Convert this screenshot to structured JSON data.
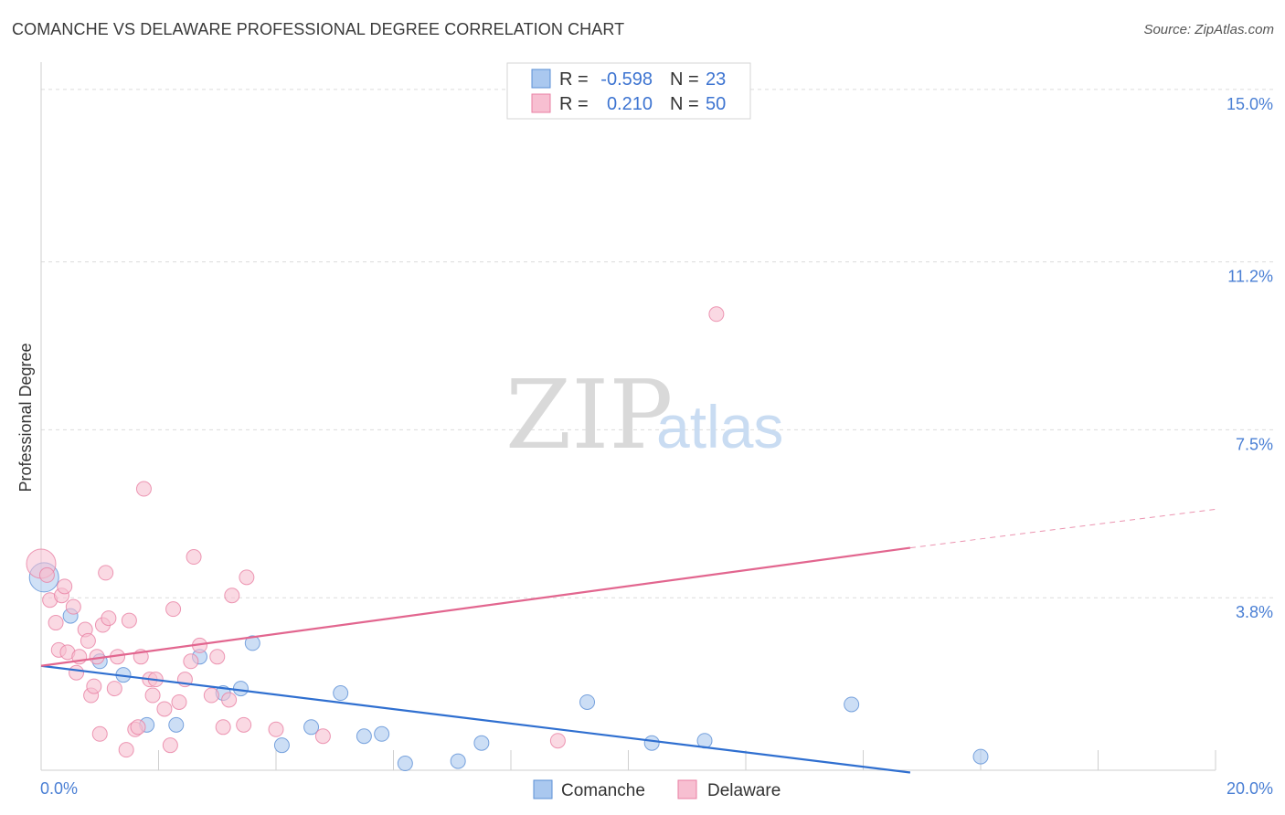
{
  "title": "COMANCHE VS DELAWARE PROFESSIONAL DEGREE CORRELATION CHART",
  "source": "Source: ZipAtlas.com",
  "watermark": {
    "part1": "ZIP",
    "part2": "atlas"
  },
  "legend_top": [
    {
      "r_label": "R =",
      "r_value": "-0.598",
      "n_label": "N =",
      "n_value": "23",
      "color": "#aac8ef",
      "stroke": "#5b8fd6"
    },
    {
      "r_label": "R =",
      "r_value": "0.210",
      "n_label": "N =",
      "n_value": "50",
      "color": "#f7bfd1",
      "stroke": "#e87fa3"
    }
  ],
  "legend_bottom": [
    {
      "label": "Comanche",
      "color": "#aac8ef",
      "stroke": "#5b8fd6"
    },
    {
      "label": "Delaware",
      "color": "#f7bfd1",
      "stroke": "#e87fa3"
    }
  ],
  "chart_data": {
    "type": "scatter",
    "title": "COMANCHE VS DELAWARE PROFESSIONAL DEGREE CORRELATION CHART",
    "xlabel": "",
    "ylabel": "Professional Degree",
    "xlim": [
      0,
      20
    ],
    "ylim": [
      0,
      15.4
    ],
    "x_tick_labels": [
      {
        "value": 0,
        "label": "0.0%"
      },
      {
        "value": 20,
        "label": "20.0%"
      }
    ],
    "y_ticks": [
      {
        "value": 3.8,
        "label": "3.8%"
      },
      {
        "value": 7.5,
        "label": "7.5%"
      },
      {
        "value": 11.2,
        "label": "11.2%"
      },
      {
        "value": 15.0,
        "label": "15.0%"
      }
    ],
    "x_minor_ticks": [
      0,
      2,
      4,
      6,
      8,
      10,
      12,
      14,
      16,
      18,
      20
    ],
    "series": [
      {
        "name": "Comanche",
        "color": "#aac8ef",
        "stroke": "#5b8fd6",
        "line_color": "#2f6fd0",
        "trend": {
          "x0": 0,
          "y0": 2.3,
          "x1": 14.8,
          "y1": -0.05,
          "dash_to_x": 14.8
        },
        "points": [
          {
            "x": 0.05,
            "y": 4.25,
            "big": true
          },
          {
            "x": 0.5,
            "y": 3.4
          },
          {
            "x": 1.0,
            "y": 2.4
          },
          {
            "x": 1.4,
            "y": 2.1
          },
          {
            "x": 1.8,
            "y": 1.0
          },
          {
            "x": 2.3,
            "y": 1.0
          },
          {
            "x": 2.7,
            "y": 2.5
          },
          {
            "x": 3.1,
            "y": 1.7
          },
          {
            "x": 3.4,
            "y": 1.8
          },
          {
            "x": 3.6,
            "y": 2.8
          },
          {
            "x": 4.1,
            "y": 0.55
          },
          {
            "x": 4.6,
            "y": 0.95
          },
          {
            "x": 5.1,
            "y": 1.7
          },
          {
            "x": 5.5,
            "y": 0.75
          },
          {
            "x": 5.8,
            "y": 0.8
          },
          {
            "x": 6.2,
            "y": 0.15
          },
          {
            "x": 7.1,
            "y": 0.2
          },
          {
            "x": 7.5,
            "y": 0.6
          },
          {
            "x": 9.3,
            "y": 1.5
          },
          {
            "x": 10.4,
            "y": 0.6
          },
          {
            "x": 11.3,
            "y": 0.65
          },
          {
            "x": 13.8,
            "y": 1.45
          },
          {
            "x": 16.0,
            "y": 0.3
          }
        ]
      },
      {
        "name": "Delaware",
        "color": "#f7bfd1",
        "stroke": "#e87fa3",
        "line_color": "#e2668f",
        "trend": {
          "x0": 0,
          "y0": 2.3,
          "x1": 14.8,
          "y1": 4.9,
          "dash_to_x": 20,
          "dash_to_y": 5.75
        },
        "points": [
          {
            "x": 0.0,
            "y": 4.55,
            "big": true
          },
          {
            "x": 0.1,
            "y": 4.3
          },
          {
            "x": 0.15,
            "y": 3.75
          },
          {
            "x": 0.25,
            "y": 3.25
          },
          {
            "x": 0.3,
            "y": 2.65
          },
          {
            "x": 0.35,
            "y": 3.85
          },
          {
            "x": 0.4,
            "y": 4.05
          },
          {
            "x": 0.45,
            "y": 2.6
          },
          {
            "x": 0.55,
            "y": 3.6
          },
          {
            "x": 0.6,
            "y": 2.15
          },
          {
            "x": 0.65,
            "y": 2.5
          },
          {
            "x": 0.75,
            "y": 3.1
          },
          {
            "x": 0.8,
            "y": 2.85
          },
          {
            "x": 0.85,
            "y": 1.65
          },
          {
            "x": 0.9,
            "y": 1.85
          },
          {
            "x": 0.95,
            "y": 2.5
          },
          {
            "x": 1.0,
            "y": 0.8
          },
          {
            "x": 1.05,
            "y": 3.2
          },
          {
            "x": 1.1,
            "y": 4.35
          },
          {
            "x": 1.15,
            "y": 3.35
          },
          {
            "x": 1.25,
            "y": 1.8
          },
          {
            "x": 1.3,
            "y": 2.5
          },
          {
            "x": 1.45,
            "y": 0.45
          },
          {
            "x": 1.5,
            "y": 3.3
          },
          {
            "x": 1.6,
            "y": 0.9
          },
          {
            "x": 1.65,
            "y": 0.95
          },
          {
            "x": 1.7,
            "y": 2.5
          },
          {
            "x": 1.75,
            "y": 6.2
          },
          {
            "x": 1.85,
            "y": 2.0
          },
          {
            "x": 1.9,
            "y": 1.65
          },
          {
            "x": 1.95,
            "y": 2.0
          },
          {
            "x": 2.1,
            "y": 1.35
          },
          {
            "x": 2.2,
            "y": 0.55
          },
          {
            "x": 2.25,
            "y": 3.55
          },
          {
            "x": 2.35,
            "y": 1.5
          },
          {
            "x": 2.45,
            "y": 2.0
          },
          {
            "x": 2.55,
            "y": 2.4
          },
          {
            "x": 2.6,
            "y": 4.7
          },
          {
            "x": 2.7,
            "y": 2.75
          },
          {
            "x": 2.9,
            "y": 1.65
          },
          {
            "x": 3.0,
            "y": 2.5
          },
          {
            "x": 3.1,
            "y": 0.95
          },
          {
            "x": 3.2,
            "y": 1.55
          },
          {
            "x": 3.25,
            "y": 3.85
          },
          {
            "x": 3.45,
            "y": 1.0
          },
          {
            "x": 3.5,
            "y": 4.25
          },
          {
            "x": 4.0,
            "y": 0.9
          },
          {
            "x": 4.8,
            "y": 0.75
          },
          {
            "x": 8.8,
            "y": 0.65
          },
          {
            "x": 11.5,
            "y": 10.05
          }
        ]
      }
    ]
  }
}
